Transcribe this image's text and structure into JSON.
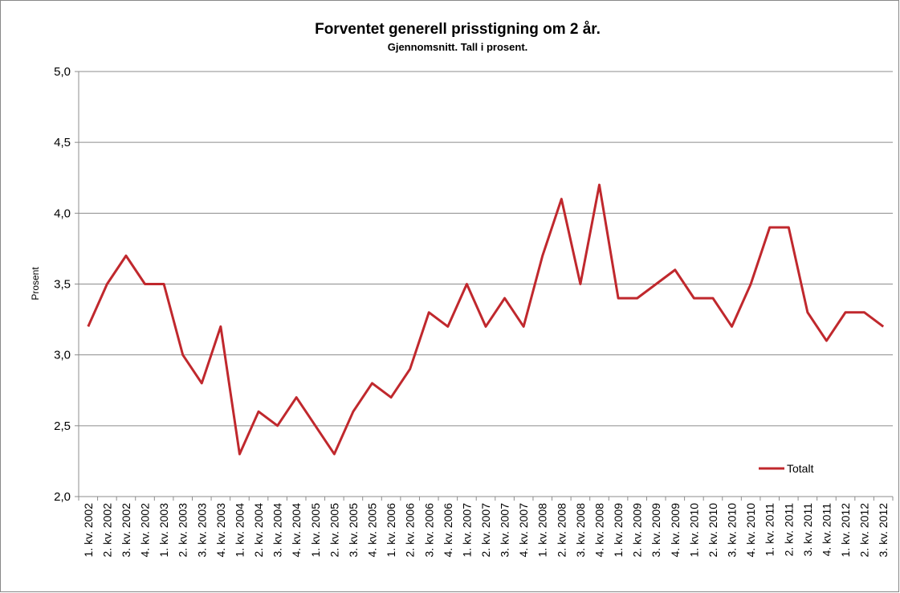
{
  "chart_data": {
    "type": "line",
    "title": "Forventet generell prisstigning om 2 år.",
    "subtitle": "Gjennomsnitt.  Tall i prosent.",
    "y_label": "Prosent",
    "categories": [
      "1. kv. 2002",
      "2. kv. 2002",
      "3. kv. 2002",
      "4. kv. 2002",
      "1. kv. 2003",
      "2. kv. 2003",
      "3. kv. 2003",
      "4. kv. 2003",
      "1. kv. 2004",
      "2. kv. 2004",
      "3. kv. 2004",
      "4. kv. 2004",
      "1. kv. 2005",
      "2. kv. 2005",
      "3. kv. 2005",
      "4. kv. 2005",
      "1. kv. 2006",
      "2. kv. 2006",
      "3. kv. 2006",
      "4. kv. 2006",
      "1. kv. 2007",
      "2. kv. 2007",
      "3. kv. 2007",
      "4. kv. 2007",
      "1. kv. 2008",
      "2. kv. 2008",
      "3. kv. 2008",
      "4. kv. 2008",
      "1. kv. 2009",
      "2. kv. 2009",
      "3. kv. 2009",
      "4. kv. 2009",
      "1. kv. 2010",
      "2. kv. 2010",
      "3. kv. 2010",
      "4. kv. 2010",
      "1. kv. 2011",
      "2. kv. 2011",
      "3. kv. 2011",
      "4. kv. 2011",
      "1. kv. 2012",
      "2. kv. 2012",
      "3. kv. 2012"
    ],
    "series": [
      {
        "name": "Totalt",
        "color": "#c0282d",
        "values": [
          3.2,
          3.5,
          3.7,
          3.5,
          3.5,
          3.0,
          2.8,
          3.2,
          2.3,
          2.6,
          2.5,
          2.7,
          2.5,
          2.3,
          2.6,
          2.8,
          2.7,
          2.9,
          3.3,
          3.2,
          3.5,
          3.2,
          3.4,
          3.2,
          3.7,
          4.1,
          3.5,
          4.2,
          3.4,
          3.4,
          3.5,
          3.6,
          3.4,
          3.4,
          3.2,
          3.5,
          3.9,
          3.9,
          3.3,
          3.1,
          3.3,
          3.3,
          3.2
        ]
      }
    ],
    "ylim": [
      2.0,
      5.0
    ],
    "yticks": [
      {
        "value": 2.0,
        "label": "2,0"
      },
      {
        "value": 2.5,
        "label": "2,5"
      },
      {
        "value": 3.0,
        "label": "3,0"
      },
      {
        "value": 3.5,
        "label": "3,5"
      },
      {
        "value": 4.0,
        "label": "4,0"
      },
      {
        "value": 4.5,
        "label": "4,5"
      },
      {
        "value": 5.0,
        "label": "5,0"
      }
    ],
    "grid": true,
    "legend": "lower right"
  }
}
